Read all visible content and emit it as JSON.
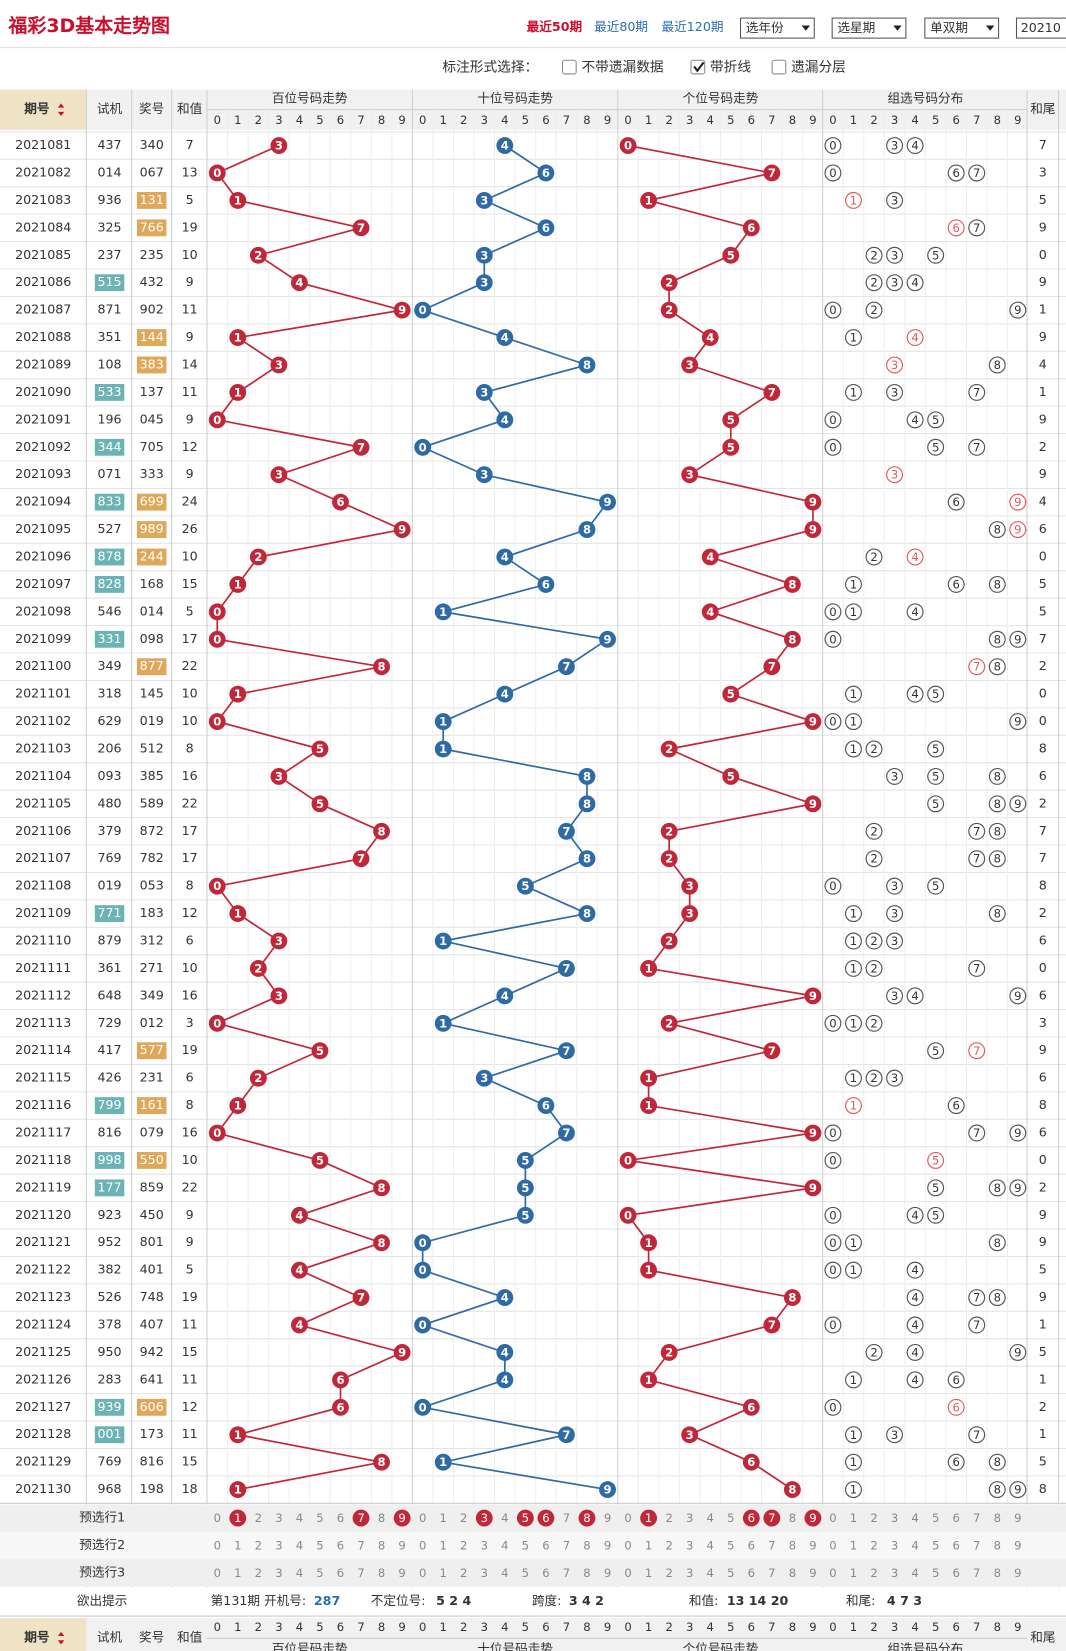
{
  "header": {
    "title": "福彩3D基本走势图",
    "links": [
      {
        "label": "最近50期",
        "active": true
      },
      {
        "label": "最近80期",
        "active": false
      },
      {
        "label": "最近120期",
        "active": false
      }
    ],
    "selects": [
      "选年份",
      "选星期",
      "单双期"
    ],
    "input": "20210",
    "option_label": "标注形式选择：",
    "options": [
      {
        "label": "不带遗漏数据",
        "checked": false
      },
      {
        "label": "带折线",
        "checked": true
      },
      {
        "label": "遗漏分层",
        "checked": false
      }
    ]
  },
  "table": {
    "columns": {
      "period": "期号",
      "trial": "试机",
      "prize": "奖号",
      "sum": "和值",
      "tail": "和尾"
    },
    "groups": [
      "百位号码走势",
      "十位号码走势",
      "个位号码走势",
      "组选号码分布"
    ],
    "digits": [
      0,
      1,
      2,
      3,
      4,
      5,
      6,
      7,
      8,
      9
    ],
    "rows": [
      {
        "period": "2021081",
        "trial": "437",
        "prize": "340",
        "sum": 7,
        "tail": 7
      },
      {
        "period": "2021082",
        "trial": "014",
        "prize": "067",
        "sum": 13,
        "tail": 3
      },
      {
        "period": "2021083",
        "trial": "936",
        "prize": "131",
        "sum": 5,
        "tail": 5,
        "prize_highlight": true
      },
      {
        "period": "2021084",
        "trial": "325",
        "prize": "766",
        "sum": 19,
        "tail": 9,
        "prize_highlight": true
      },
      {
        "period": "2021085",
        "trial": "237",
        "prize": "235",
        "sum": 10,
        "tail": 0
      },
      {
        "period": "2021086",
        "trial": "515",
        "prize": "432",
        "sum": 9,
        "tail": 9,
        "trial_highlight": true
      },
      {
        "period": "2021087",
        "trial": "871",
        "prize": "902",
        "sum": 11,
        "tail": 1
      },
      {
        "period": "2021088",
        "trial": "351",
        "prize": "144",
        "sum": 9,
        "tail": 9,
        "prize_highlight": true
      },
      {
        "period": "2021089",
        "trial": "108",
        "prize": "383",
        "sum": 14,
        "tail": 4,
        "prize_highlight": true
      },
      {
        "period": "2021090",
        "trial": "533",
        "prize": "137",
        "sum": 11,
        "tail": 1,
        "trial_highlight": true
      },
      {
        "period": "2021091",
        "trial": "196",
        "prize": "045",
        "sum": 9,
        "tail": 9
      },
      {
        "period": "2021092",
        "trial": "344",
        "prize": "705",
        "sum": 12,
        "tail": 2,
        "trial_highlight": true
      },
      {
        "period": "2021093",
        "trial": "071",
        "prize": "333",
        "sum": 9,
        "tail": 9
      },
      {
        "period": "2021094",
        "trial": "833",
        "prize": "699",
        "sum": 24,
        "tail": 4,
        "trial_highlight": true,
        "prize_highlight": true
      },
      {
        "period": "2021095",
        "trial": "527",
        "prize": "989",
        "sum": 26,
        "tail": 6,
        "prize_highlight": true
      },
      {
        "period": "2021096",
        "trial": "878",
        "prize": "244",
        "sum": 10,
        "tail": 0,
        "trial_highlight": true,
        "prize_highlight": true
      },
      {
        "period": "2021097",
        "trial": "828",
        "prize": "168",
        "sum": 15,
        "tail": 5,
        "trial_highlight": true
      },
      {
        "period": "2021098",
        "trial": "546",
        "prize": "014",
        "sum": 5,
        "tail": 5
      },
      {
        "period": "2021099",
        "trial": "331",
        "prize": "098",
        "sum": 17,
        "tail": 7,
        "trial_highlight": true
      },
      {
        "period": "2021100",
        "trial": "349",
        "prize": "877",
        "sum": 22,
        "tail": 2,
        "prize_highlight": true
      },
      {
        "period": "2021101",
        "trial": "318",
        "prize": "145",
        "sum": 10,
        "tail": 0
      },
      {
        "period": "2021102",
        "trial": "629",
        "prize": "019",
        "sum": 10,
        "tail": 0
      },
      {
        "period": "2021103",
        "trial": "206",
        "prize": "512",
        "sum": 8,
        "tail": 8
      },
      {
        "period": "2021104",
        "trial": "093",
        "prize": "385",
        "sum": 16,
        "tail": 6
      },
      {
        "period": "2021105",
        "trial": "480",
        "prize": "589",
        "sum": 22,
        "tail": 2
      },
      {
        "period": "2021106",
        "trial": "379",
        "prize": "872",
        "sum": 17,
        "tail": 7
      },
      {
        "period": "2021107",
        "trial": "769",
        "prize": "782",
        "sum": 17,
        "tail": 7
      },
      {
        "period": "2021108",
        "trial": "019",
        "prize": "053",
        "sum": 8,
        "tail": 8
      },
      {
        "period": "2021109",
        "trial": "771",
        "prize": "183",
        "sum": 12,
        "tail": 2,
        "trial_highlight": true
      },
      {
        "period": "2021110",
        "trial": "879",
        "prize": "312",
        "sum": 6,
        "tail": 6
      },
      {
        "period": "2021111",
        "trial": "361",
        "prize": "271",
        "sum": 10,
        "tail": 0
      },
      {
        "period": "2021112",
        "trial": "648",
        "prize": "349",
        "sum": 16,
        "tail": 6
      },
      {
        "period": "2021113",
        "trial": "729",
        "prize": "012",
        "sum": 3,
        "tail": 3
      },
      {
        "period": "2021114",
        "trial": "417",
        "prize": "577",
        "sum": 19,
        "tail": 9,
        "prize_highlight": true
      },
      {
        "period": "2021115",
        "trial": "426",
        "prize": "231",
        "sum": 6,
        "tail": 6
      },
      {
        "period": "2021116",
        "trial": "799",
        "prize": "161",
        "sum": 8,
        "tail": 8,
        "trial_highlight": true,
        "prize_highlight": true
      },
      {
        "period": "2021117",
        "trial": "816",
        "prize": "079",
        "sum": 16,
        "tail": 6
      },
      {
        "period": "2021118",
        "trial": "998",
        "prize": "550",
        "sum": 10,
        "tail": 0,
        "trial_highlight": true,
        "prize_highlight": true
      },
      {
        "period": "2021119",
        "trial": "177",
        "prize": "859",
        "sum": 22,
        "tail": 2,
        "trial_highlight": true
      },
      {
        "period": "2021120",
        "trial": "923",
        "prize": "450",
        "sum": 9,
        "tail": 9
      },
      {
        "period": "2021121",
        "trial": "952",
        "prize": "801",
        "sum": 9,
        "tail": 9
      },
      {
        "period": "2021122",
        "trial": "382",
        "prize": "401",
        "sum": 5,
        "tail": 5
      },
      {
        "period": "2021123",
        "trial": "526",
        "prize": "748",
        "sum": 19,
        "tail": 9
      },
      {
        "period": "2021124",
        "trial": "378",
        "prize": "407",
        "sum": 11,
        "tail": 1
      },
      {
        "period": "2021125",
        "trial": "950",
        "prize": "942",
        "sum": 15,
        "tail": 5
      },
      {
        "period": "2021126",
        "trial": "283",
        "prize": "641",
        "sum": 11,
        "tail": 1
      },
      {
        "period": "2021127",
        "trial": "939",
        "prize": "606",
        "sum": 12,
        "tail": 2,
        "trial_highlight": true,
        "prize_highlight": true
      },
      {
        "period": "2021128",
        "trial": "001",
        "prize": "173",
        "sum": 11,
        "tail": 1,
        "trial_highlight": true
      },
      {
        "period": "2021129",
        "trial": "769",
        "prize": "816",
        "sum": 15,
        "tail": 5
      },
      {
        "period": "2021130",
        "trial": "968",
        "prize": "198",
        "sum": 18,
        "tail": 8
      }
    ],
    "preselect": [
      {
        "label": "预选行1",
        "picks": [
          [
            1,
            7,
            9
          ],
          [
            3,
            5,
            6,
            8
          ],
          [
            1,
            6,
            7,
            9
          ],
          []
        ]
      },
      {
        "label": "预选行2",
        "picks": [
          [],
          [],
          [],
          []
        ]
      },
      {
        "label": "预选行3",
        "picks": [
          [],
          [],
          [],
          []
        ]
      }
    ],
    "hint": {
      "label": "欲出提示",
      "parts": [
        {
          "text": "第131期 开机号:"
        },
        {
          "text": "287",
          "strong": true
        },
        {
          "text": "不定位号:"
        },
        {
          "text": "5 2 4",
          "strong": true
        },
        {
          "text": "跨度:"
        },
        {
          "text": "3 4 2",
          "strong": true
        },
        {
          "text": "和值:"
        },
        {
          "text": "13 14 20",
          "strong": true
        },
        {
          "text": "和尾:"
        },
        {
          "text": "4 7 3",
          "strong": true
        }
      ]
    }
  }
}
